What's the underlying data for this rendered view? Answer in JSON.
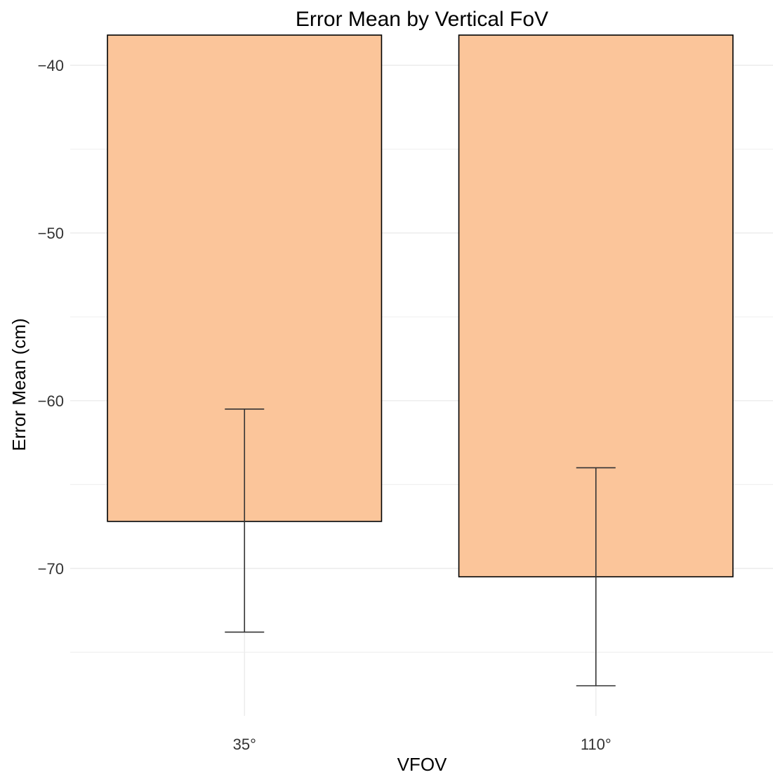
{
  "chart_data": {
    "type": "bar",
    "title": "Error Mean by Vertical FoV",
    "xlabel": "VFOV",
    "ylabel": "Error Mean (cm)",
    "categories": [
      "35°",
      "110°"
    ],
    "values": [
      -67.2,
      -70.5
    ],
    "error_bars": [
      {
        "low": -73.8,
        "high": -60.5
      },
      {
        "low": -77.0,
        "high": -64.0
      }
    ],
    "ylim": [
      -78.8,
      -38.2
    ],
    "y_ticks": [
      -40,
      -50,
      -60,
      -70
    ],
    "y_tick_labels": [
      "−40",
      "−50",
      "−60",
      "−70"
    ],
    "grid": true,
    "bar_fill": "#FBC59A",
    "bar_stroke": "#000000",
    "errorbar_color": "#333333",
    "gridline_color": "#EBEBEB"
  }
}
